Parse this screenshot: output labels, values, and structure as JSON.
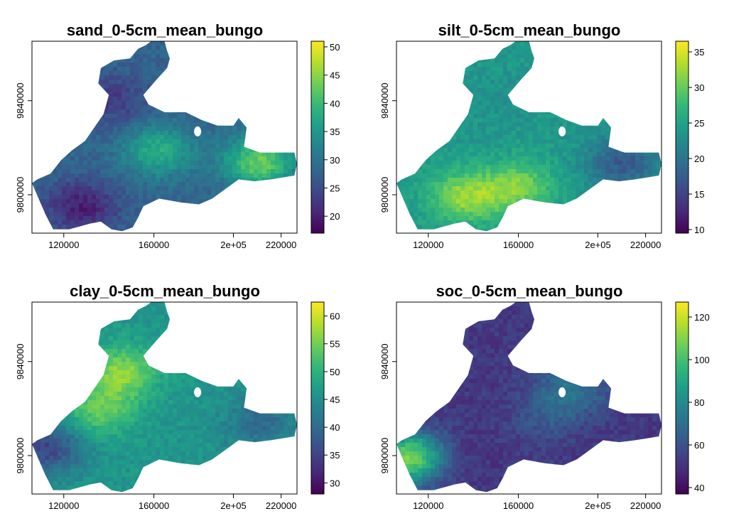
{
  "figure": {
    "palette": "viridis"
  },
  "chart_data": [
    {
      "type": "heatmap",
      "title": "sand_0-5cm_mean_bungo",
      "x_ticks": [
        "120000",
        "160000",
        "2e+05",
        "220000"
      ],
      "y_ticks": [
        "9800000",
        "9840000"
      ],
      "colorbar": {
        "range": [
          17,
          51
        ],
        "ticks": [
          20,
          25,
          30,
          35,
          40,
          45,
          50
        ],
        "tick_labels": [
          "20",
          "25",
          "30",
          "35",
          "40",
          "45",
          "50"
        ]
      },
      "field": {
        "base": 28,
        "hotspots": [
          {
            "x": 0.47,
            "y": 0.56,
            "value": 38
          },
          {
            "x": 0.85,
            "y": 0.62,
            "value": 43
          },
          {
            "x": 0.18,
            "y": 0.85,
            "value": 20
          },
          {
            "x": 0.3,
            "y": 0.3,
            "value": 23
          }
        ]
      },
      "grid": false
    },
    {
      "type": "heatmap",
      "title": "silt_0-5cm_mean_bungo",
      "x_ticks": [
        "120000",
        "160000",
        "2e+05",
        "220000"
      ],
      "y_ticks": [
        "9800000",
        "9840000"
      ],
      "colorbar": {
        "range": [
          9.5,
          36.5
        ],
        "ticks": [
          10,
          15,
          20,
          25,
          30,
          35
        ],
        "tick_labels": [
          "10",
          "15",
          "20",
          "25",
          "30",
          "35"
        ]
      },
      "field": {
        "base": 24,
        "hotspots": [
          {
            "x": 0.25,
            "y": 0.8,
            "value": 32
          },
          {
            "x": 0.45,
            "y": 0.75,
            "value": 31
          },
          {
            "x": 0.85,
            "y": 0.62,
            "value": 17
          },
          {
            "x": 0.4,
            "y": 0.3,
            "value": 23
          }
        ]
      },
      "grid": false
    },
    {
      "type": "heatmap",
      "title": "clay_0-5cm_mean_bungo",
      "x_ticks": [
        "120000",
        "160000",
        "2e+05",
        "220000"
      ],
      "y_ticks": [
        "9800000",
        "9840000"
      ],
      "colorbar": {
        "range": [
          28,
          62.5
        ],
        "ticks": [
          30,
          35,
          40,
          45,
          50,
          55,
          60
        ],
        "tick_labels": [
          "30",
          "35",
          "40",
          "45",
          "50",
          "55",
          "60"
        ]
      },
      "field": {
        "base": 46,
        "hotspots": [
          {
            "x": 0.33,
            "y": 0.35,
            "value": 56
          },
          {
            "x": 0.25,
            "y": 0.55,
            "value": 54
          },
          {
            "x": 0.85,
            "y": 0.62,
            "value": 40
          },
          {
            "x": 0.05,
            "y": 0.75,
            "value": 35
          }
        ]
      },
      "grid": false
    },
    {
      "type": "heatmap",
      "title": "soc_0-5cm_mean_bungo",
      "x_ticks": [
        "120000",
        "160000",
        "2e+05",
        "220000"
      ],
      "y_ticks": [
        "9800000",
        "9840000"
      ],
      "colorbar": {
        "range": [
          37,
          127
        ],
        "ticks": [
          40,
          60,
          80,
          100,
          120
        ],
        "tick_labels": [
          "40",
          "60",
          "80",
          "100",
          "120"
        ]
      },
      "field": {
        "base": 52,
        "hotspots": [
          {
            "x": 0.65,
            "y": 0.45,
            "value": 72
          },
          {
            "x": 0.04,
            "y": 0.8,
            "value": 110
          },
          {
            "x": 0.2,
            "y": 0.8,
            "value": 48
          },
          {
            "x": 0.55,
            "y": 0.6,
            "value": 60
          }
        ]
      },
      "grid": false
    }
  ]
}
